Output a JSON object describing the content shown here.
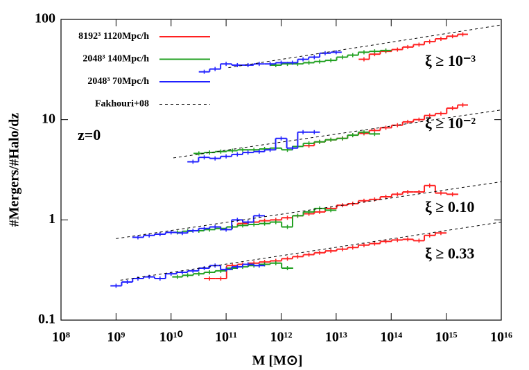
{
  "chart_data": {
    "type": "line",
    "x_label": "M [M⊙]",
    "y_label": "#Mergers/#Halo/dz",
    "xscale": "log",
    "yscale": "log",
    "xlim": [
      100000000.0,
      1e+16
    ],
    "ylim": [
      0.1,
      100
    ],
    "xticks": [
      {
        "value": 100000000.0,
        "label": "10⁸"
      },
      {
        "value": 1000000000.0,
        "label": "10⁹"
      },
      {
        "value": 10000000000.0,
        "label": "10¹⁰"
      },
      {
        "value": 100000000000.0,
        "label": "10¹¹"
      },
      {
        "value": 1000000000000.0,
        "label": "10¹²"
      },
      {
        "value": 10000000000000.0,
        "label": "10¹³"
      },
      {
        "value": 100000000000000.0,
        "label": "10¹⁴"
      },
      {
        "value": 1000000000000000.0,
        "label": "10¹⁵"
      },
      {
        "value": 1e+16,
        "label": "10¹⁶"
      }
    ],
    "yticks": [
      0.1,
      1,
      10,
      100
    ],
    "series": [
      {
        "name": "8192³ 1120Mpc/h",
        "color": "#ff2020",
        "style": "step",
        "curves": [
          {
            "x": [
              32000000000000.0,
              50000000000000.0,
              80000000000000.0,
              130000000000000.0,
              200000000000000.0,
              320000000000000.0,
              500000000000000.0,
              800000000000000.0,
              1300000000000000.0,
              2000000000000000.0
            ],
            "values": [
              40,
              45,
              48,
              50,
              53,
              56,
              60,
              64,
              68,
              71
            ]
          },
          {
            "x": [
              3200000000000.0,
              5000000000000.0,
              8000000000000.0,
              13000000000000.0,
              20000000000000.0,
              32000000000000.0,
              50000000000000.0,
              80000000000000.0,
              130000000000000.0,
              200000000000000.0,
              320000000000000.0,
              500000000000000.0,
              800000000000000.0,
              1300000000000000.0,
              2000000000000000.0
            ],
            "values": [
              5.5,
              6,
              6.3,
              6.5,
              7,
              7.3,
              7.8,
              8.3,
              8.8,
              9.5,
              10,
              11,
              11.5,
              13,
              14
            ]
          },
          {
            "x": [
              130000000000.0,
              200000000000.0,
              320000000000.0,
              500000000000.0,
              800000000000.0,
              1300000000000.0,
              2000000000000.0,
              3200000000000.0,
              5000000000000.0,
              8000000000000.0,
              13000000000000.0,
              20000000000000.0,
              32000000000000.0,
              50000000000000.0,
              80000000000000.0,
              130000000000000.0,
              200000000000000.0,
              320000000000000.0,
              500000000000000.0,
              800000000000000.0,
              1300000000000000.0
            ],
            "values": [
              0.85,
              0.92,
              0.95,
              0.98,
              1.0,
              1.05,
              1.1,
              1.15,
              1.2,
              1.3,
              1.4,
              1.45,
              1.55,
              1.6,
              1.7,
              1.8,
              1.9,
              1.9,
              2.2,
              1.85,
              1.8
            ]
          },
          {
            "x": [
              50000000000.0,
              80000000000.0,
              130000000000.0,
              200000000000.0,
              320000000000.0,
              500000000000.0,
              800000000000.0,
              1300000000000.0,
              2000000000000.0,
              3200000000000.0,
              5000000000000.0,
              8000000000000.0,
              13000000000000.0,
              20000000000000.0,
              32000000000000.0,
              50000000000000.0,
              80000000000000.0,
              130000000000000.0,
              200000000000000.0,
              320000000000000.0,
              500000000000000.0,
              800000000000000.0
            ],
            "values": [
              0.26,
              0.26,
              0.35,
              0.36,
              0.37,
              0.38,
              0.39,
              0.41,
              0.43,
              0.45,
              0.47,
              0.49,
              0.51,
              0.53,
              0.56,
              0.58,
              0.61,
              0.63,
              0.64,
              0.62,
              0.7,
              0.74
            ]
          }
        ]
      },
      {
        "name": "2048³ 140Mpc/h",
        "color": "#20a020",
        "style": "step",
        "curves": [
          {
            "x": [
              800000000000.0,
              1300000000000.0,
              2000000000000.0,
              3200000000000.0,
              5000000000000.0,
              8000000000000.0,
              13000000000000.0,
              20000000000000.0,
              32000000000000.0,
              50000000000000.0,
              80000000000000.0
            ],
            "values": [
              35,
              36,
              36,
              37,
              38,
              39,
              42,
              44,
              47,
              48,
              49
            ]
          },
          {
            "x": [
              32000000000.0,
              50000000000.0,
              80000000000.0,
              130000000000.0,
              200000000000.0,
              320000000000.0,
              500000000000.0,
              800000000000.0,
              1300000000000.0,
              2000000000000.0,
              3200000000000.0,
              5000000000000.0,
              8000000000000.0,
              13000000000000.0,
              20000000000000.0,
              32000000000000.0,
              50000000000000.0
            ],
            "values": [
              4.6,
              4.7,
              4.8,
              4.9,
              5.0,
              5.0,
              5.1,
              5.2,
              5.0,
              5.4,
              5.8,
              6.0,
              6.3,
              6.5,
              7.0,
              7.5,
              7.2
            ]
          },
          {
            "x": [
              13000000000.0,
              20000000000.0,
              32000000000.0,
              50000000000.0,
              80000000000.0,
              130000000000.0,
              200000000000.0,
              320000000000.0,
              500000000000.0,
              800000000000.0,
              1300000000000.0,
              2000000000000.0,
              3200000000000.0,
              5000000000000.0,
              8000000000000.0
            ],
            "values": [
              0.75,
              0.77,
              0.78,
              0.8,
              0.82,
              0.85,
              0.88,
              0.9,
              0.92,
              0.95,
              0.85,
              1.1,
              1.2,
              1.3,
              1.25
            ]
          },
          {
            "x": [
              13000000000.0,
              20000000000.0,
              32000000000.0,
              50000000000.0,
              80000000000.0,
              130000000000.0,
              200000000000.0,
              320000000000.0,
              500000000000.0,
              800000000000.0,
              1300000000000.0
            ],
            "values": [
              0.27,
              0.28,
              0.29,
              0.3,
              0.31,
              0.33,
              0.34,
              0.35,
              0.36,
              0.37,
              0.33
            ]
          }
        ]
      },
      {
        "name": "2048³ 70Mpc/h",
        "color": "#2020ff",
        "style": "step",
        "curves": [
          {
            "x": [
              40000000000.0,
              63000000000.0,
              100000000000.0,
              160000000000.0,
              250000000000.0,
              400000000000.0,
              630000000000.0,
              1000000000000.0,
              1600000000000.0,
              2500000000000.0,
              4000000000000.0,
              6300000000000.0,
              10000000000000.0
            ],
            "values": [
              30,
              32,
              36,
              35,
              35,
              36,
              36,
              37,
              37,
              40,
              42,
              46,
              47
            ]
          },
          {
            "x": [
              25000000000.0,
              40000000000.0,
              63000000000.0,
              100000000000.0,
              160000000000.0,
              250000000000.0,
              400000000000.0,
              630000000000.0,
              1000000000000.0,
              1600000000000.0,
              2500000000000.0,
              4000000000000.0
            ],
            "values": [
              3.8,
              4.2,
              4.1,
              4.3,
              4.5,
              4.7,
              4.8,
              5.0,
              6.5,
              5.2,
              7.5,
              7.5
            ]
          },
          {
            "x": [
              2500000000.0,
              4000000000.0,
              6300000000.0,
              10000000000.0,
              16000000000.0,
              25000000000.0,
              40000000000.0,
              63000000000.0,
              100000000000.0,
              160000000000.0,
              250000000000.0,
              400000000000.0
            ],
            "values": [
              0.67,
              0.7,
              0.72,
              0.75,
              0.74,
              0.78,
              0.82,
              0.85,
              0.8,
              1.0,
              0.95,
              1.1
            ]
          },
          {
            "x": [
              1000000000.0,
              1600000000.0,
              2500000000.0,
              4000000000.0,
              6300000000.0,
              10000000000.0,
              16000000000.0,
              25000000000.0,
              40000000000.0,
              63000000000.0,
              100000000000.0,
              160000000000.0,
              250000000000.0,
              400000000000.0
            ],
            "values": [
              0.22,
              0.24,
              0.26,
              0.27,
              0.26,
              0.29,
              0.3,
              0.31,
              0.33,
              0.35,
              0.32,
              0.34,
              0.36,
              0.35
            ]
          }
        ]
      },
      {
        "name": "Fakhouri+08",
        "color": "#000000",
        "style": "dashed",
        "curves": [
          {
            "x": [
              110000000000.0,
              1e+16
            ],
            "values": [
              33,
              88
            ]
          },
          {
            "x": [
              11000000000.0,
              1e+16
            ],
            "values": [
              4.15,
              12.5
            ]
          },
          {
            "x": [
              1000000000.0,
              1e+16
            ],
            "values": [
              0.65,
              2.4
            ]
          },
          {
            "x": [
              1200000000.0,
              1e+16
            ],
            "values": [
              0.25,
              0.95
            ]
          }
        ]
      }
    ],
    "annotations": [
      "ξ ≥ 10⁻³",
      "ξ ≥ 10⁻²",
      "ξ ≥ 0.10",
      "ξ ≥ 0.33",
      "z=0"
    ]
  }
}
